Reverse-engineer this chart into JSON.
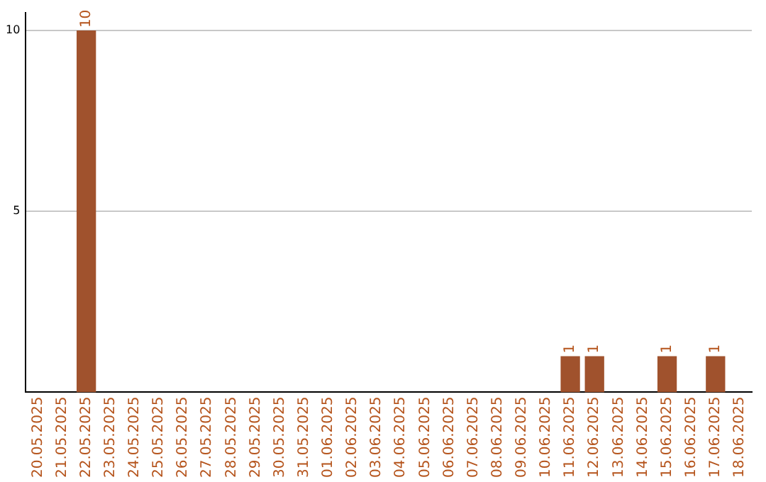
{
  "chart_data": {
    "type": "bar",
    "categories": [
      "20.05.2025",
      "21.05.2025",
      "22.05.2025",
      "23.05.2025",
      "24.05.2025",
      "25.05.2025",
      "26.05.2025",
      "27.05.2025",
      "28.05.2025",
      "29.05.2025",
      "30.05.2025",
      "31.05.2025",
      "01.06.2025",
      "02.06.2025",
      "03.06.2025",
      "04.06.2025",
      "05.06.2025",
      "06.06.2025",
      "07.06.2025",
      "08.06.2025",
      "09.06.2025",
      "10.06.2025",
      "11.06.2025",
      "12.06.2025",
      "13.06.2025",
      "14.06.2025",
      "15.06.2025",
      "16.06.2025",
      "17.06.2025",
      "18.06.2025"
    ],
    "values": [
      0,
      0,
      10,
      0,
      0,
      0,
      0,
      0,
      0,
      0,
      0,
      0,
      0,
      0,
      0,
      0,
      0,
      0,
      0,
      0,
      0,
      0,
      1,
      1,
      0,
      0,
      1,
      0,
      1,
      0
    ],
    "value_labels": [
      null,
      null,
      "10",
      null,
      null,
      null,
      null,
      null,
      null,
      null,
      null,
      null,
      null,
      null,
      null,
      null,
      null,
      null,
      null,
      null,
      null,
      null,
      "1",
      "1",
      null,
      null,
      "1",
      null,
      "1",
      null
    ],
    "color": "#a0522d",
    "ylim": [
      0,
      10.5
    ],
    "yticks": [
      5,
      10
    ],
    "grid": "y"
  }
}
